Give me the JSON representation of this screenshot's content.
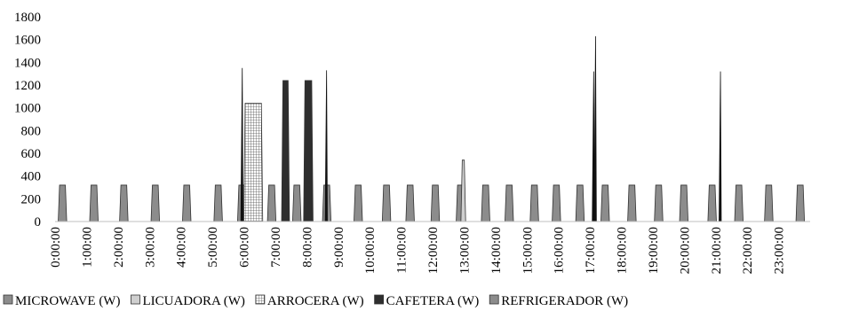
{
  "chart_data": {
    "type": "area",
    "title": "",
    "xlabel": "",
    "ylabel": "",
    "ylim": [
      0,
      1800
    ],
    "y_ticks": [
      0,
      200,
      400,
      600,
      800,
      1000,
      1200,
      1400,
      1600,
      1800
    ],
    "x_ticks": [
      "0:00:00",
      "1:00:00",
      "2:00:00",
      "3:00:00",
      "4:00:00",
      "5:00:00",
      "6:00:00",
      "7:00:00",
      "8:00:00",
      "9:00:00",
      "10:00:00",
      "11:00:00",
      "12:00:00",
      "13:00:00",
      "14:00:00",
      "15:00:00",
      "16:00:00",
      "17:00:00",
      "18:00:00",
      "19:00:00",
      "20:00:00",
      "21:00:00",
      "22:00:00",
      "23:00:00"
    ],
    "x_range_hours": [
      0,
      24
    ],
    "grid": false,
    "legend_position": "bottom",
    "series": [
      {
        "name": "MICROWAVE (W)",
        "color": "#8c8c8c",
        "pattern": "solid",
        "spikes": [
          {
            "t": 5.95,
            "v": 1350
          }
        ]
      },
      {
        "name": "LICUADORA (W)",
        "color": "#cfcfcf",
        "pattern": "solid",
        "pulses": [
          {
            "start": 12.9,
            "end": 13.05,
            "v": 540
          }
        ]
      },
      {
        "name": "ARROCERA (W)",
        "color": "#f2f2f2",
        "pattern": "grid",
        "pulses": [
          {
            "start": 6.0,
            "end": 6.6,
            "v": 1040
          }
        ]
      },
      {
        "name": "CAFETERA (W)",
        "color": "#2e2e2e",
        "pattern": "solid",
        "pulses": [
          {
            "start": 7.2,
            "end": 7.45,
            "v": 1240
          },
          {
            "start": 7.9,
            "end": 8.2,
            "v": 1240
          }
        ],
        "spikes": [
          {
            "t": 8.63,
            "v": 1330
          },
          {
            "t": 17.12,
            "v": 1320
          },
          {
            "t": 21.15,
            "v": 1320
          }
        ]
      },
      {
        "name": "REFRIGERADOR (W)",
        "color": "#8c8c8c",
        "pattern": "solid",
        "cycles": {
          "v": 320,
          "width": 0.27,
          "starts": [
            0.1,
            1.1,
            2.05,
            3.05,
            4.05,
            5.05,
            5.8,
            6.75,
            7.55,
            8.5,
            9.5,
            10.4,
            11.15,
            11.95,
            12.75,
            13.55,
            14.3,
            15.1,
            15.8,
            16.55,
            17.35,
            18.2,
            19.05,
            19.85,
            20.75,
            21.6,
            22.55,
            23.55
          ]
        },
        "spikes": [
          {
            "t": 17.18,
            "v": 1630
          }
        ]
      }
    ]
  }
}
